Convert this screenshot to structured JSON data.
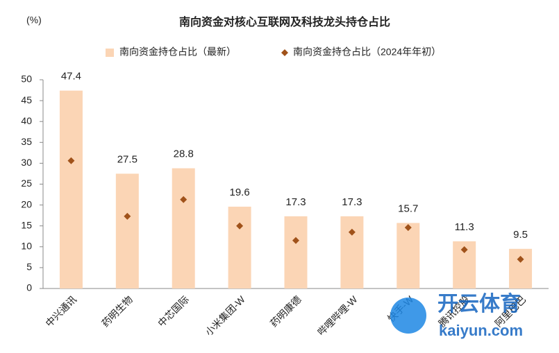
{
  "chart_data": {
    "type": "bar",
    "title": "南向资金对核心互联网及科技龙头持仓占比",
    "y_label": "(%)",
    "categories": [
      "中兴通讯",
      "药明生物",
      "中芯国际",
      "小米集团-W",
      "药明康德",
      "哔哩哔哩-W",
      "快手-W",
      "腾讯控股",
      "阿里巴巴"
    ],
    "series": [
      {
        "name": "南向资金持仓占比（最新）",
        "type": "bar",
        "color": "#fbd5b5",
        "values": [
          47.4,
          27.5,
          28.8,
          19.6,
          17.3,
          17.3,
          15.7,
          11.3,
          9.5
        ]
      },
      {
        "name": "南向资金持仓占比（2024年年初）",
        "type": "scatter",
        "color": "#a0521a",
        "values": [
          30.6,
          17.3,
          21.3,
          15.0,
          11.5,
          13.5,
          14.6,
          9.3,
          7.0
        ]
      }
    ],
    "ylim": [
      0,
      50
    ],
    "yticks": [
      0,
      5,
      10,
      15,
      20,
      25,
      30,
      35,
      40,
      45,
      50
    ],
    "grid": false,
    "legend": "top",
    "watermark": {
      "brand": "开云体育",
      "url": "kaiyun.com"
    }
  }
}
